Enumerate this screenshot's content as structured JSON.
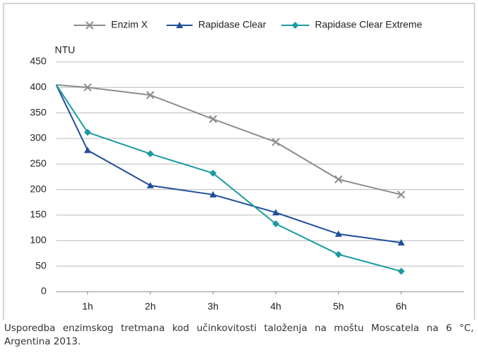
{
  "chart_data": {
    "type": "line",
    "y_label": "NTU",
    "x": [
      0.5,
      1,
      2,
      3,
      4,
      5,
      6
    ],
    "xlim": [
      0.5,
      7
    ],
    "xticks": [
      {
        "value": 1,
        "label": "1h"
      },
      {
        "value": 2,
        "label": "2h"
      },
      {
        "value": 3,
        "label": "3h"
      },
      {
        "value": 4,
        "label": "4h"
      },
      {
        "value": 5,
        "label": "5h"
      },
      {
        "value": 6,
        "label": "6h"
      }
    ],
    "ylim": [
      0,
      450
    ],
    "yticks": [
      0,
      50,
      100,
      150,
      200,
      250,
      300,
      350,
      400,
      450
    ],
    "grid": true,
    "legend": "top",
    "series": [
      {
        "name": "Enzim X",
        "color": "#8c8c8c",
        "marker": "x",
        "values": [
          405,
          400,
          385,
          338,
          293,
          220,
          190
        ]
      },
      {
        "name": "Rapidase Clear",
        "color": "#1f4e9c",
        "marker": "triangle",
        "values": [
          405,
          277,
          208,
          190,
          155,
          113,
          96
        ]
      },
      {
        "name": "Rapidase Clear Extreme",
        "color": "#1a9ba0",
        "marker": "diamond",
        "values": [
          405,
          312,
          270,
          232,
          133,
          73,
          40
        ]
      }
    ],
    "caption": "Usporedba enzimskog tretmana kod učinkovitosti taloženja na moštu Moscatela na 6 °C, Argentina 2013."
  }
}
